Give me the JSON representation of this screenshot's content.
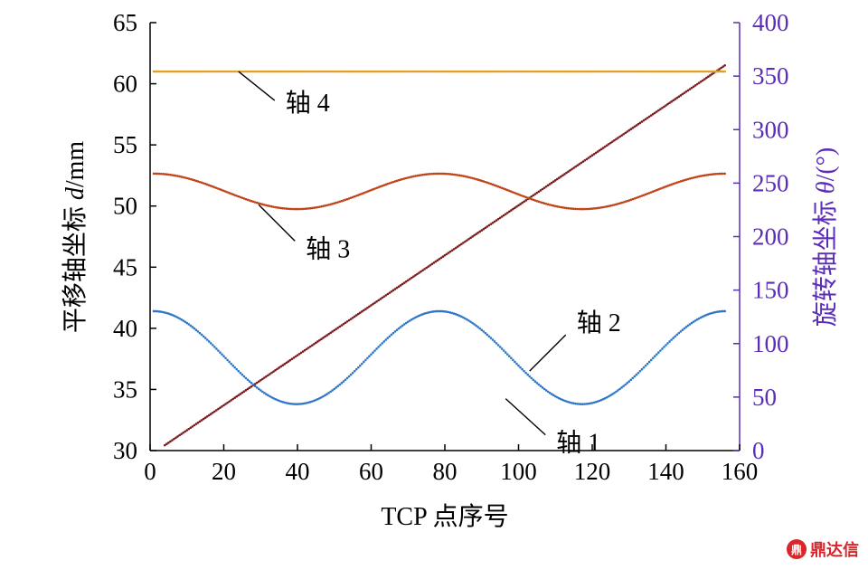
{
  "chart_data": {
    "type": "scatter",
    "xlabel": "TCP 点序号",
    "ylabel_left_prefix": "平移轴坐标 ",
    "ylabel_left_var": "d",
    "ylabel_left_unit": "/mm",
    "ylabel_right_prefix": "旋转轴坐标 ",
    "ylabel_right_var": "θ",
    "ylabel_right_unit": "/(°)",
    "xlim": [
      0,
      160
    ],
    "xticks": [
      "0",
      "20",
      "40",
      "60",
      "80",
      "100",
      "120",
      "140",
      "160"
    ],
    "ylim_left": [
      30,
      65
    ],
    "yticks_left": [
      "30",
      "35",
      "40",
      "45",
      "50",
      "55",
      "60",
      "65"
    ],
    "ylim_right": [
      0,
      400
    ],
    "yticks_right": [
      "0",
      "50",
      "100",
      "150",
      "200",
      "250",
      "300",
      "350",
      "400"
    ],
    "series": [
      {
        "name": "轴 1",
        "axis": "right",
        "color": "#7b1a1a",
        "shape": "linear",
        "x_start": 4,
        "x_end": 156,
        "y_start": 5,
        "y_end": 360
      },
      {
        "name": "轴 2",
        "axis": "left",
        "color": "#2e75c8",
        "shape": "cosine",
        "x_start": 1,
        "x_end": 156,
        "mean": 37.6,
        "amplitude": 3.8,
        "period": 77.5,
        "phase_x": 1
      },
      {
        "name": "轴 3",
        "axis": "left",
        "color": "#c0441a",
        "shape": "cosine",
        "x_start": 1,
        "x_end": 156,
        "mean": 51.2,
        "amplitude": 1.45,
        "period": 77.5,
        "phase_x": 1
      },
      {
        "name": "轴 4",
        "axis": "left",
        "color": "#e0a020",
        "shape": "constant",
        "x_start": 1,
        "x_end": 156,
        "value": 61
      }
    ],
    "annotations": [
      {
        "label": "轴 4",
        "series": "轴 4",
        "x": 24,
        "y": 61
      },
      {
        "label": "轴 3",
        "series": "轴 3",
        "x": 29.5,
        "y": 50.1
      },
      {
        "label": "轴 1",
        "series": "轴 1",
        "x": 96.5,
        "y": 48.5
      },
      {
        "label": "轴 2",
        "series": "轴 2",
        "x": 103,
        "y": 36.5
      }
    ]
  },
  "watermark": {
    "text": "鼎达信",
    "logo": "鼎"
  }
}
